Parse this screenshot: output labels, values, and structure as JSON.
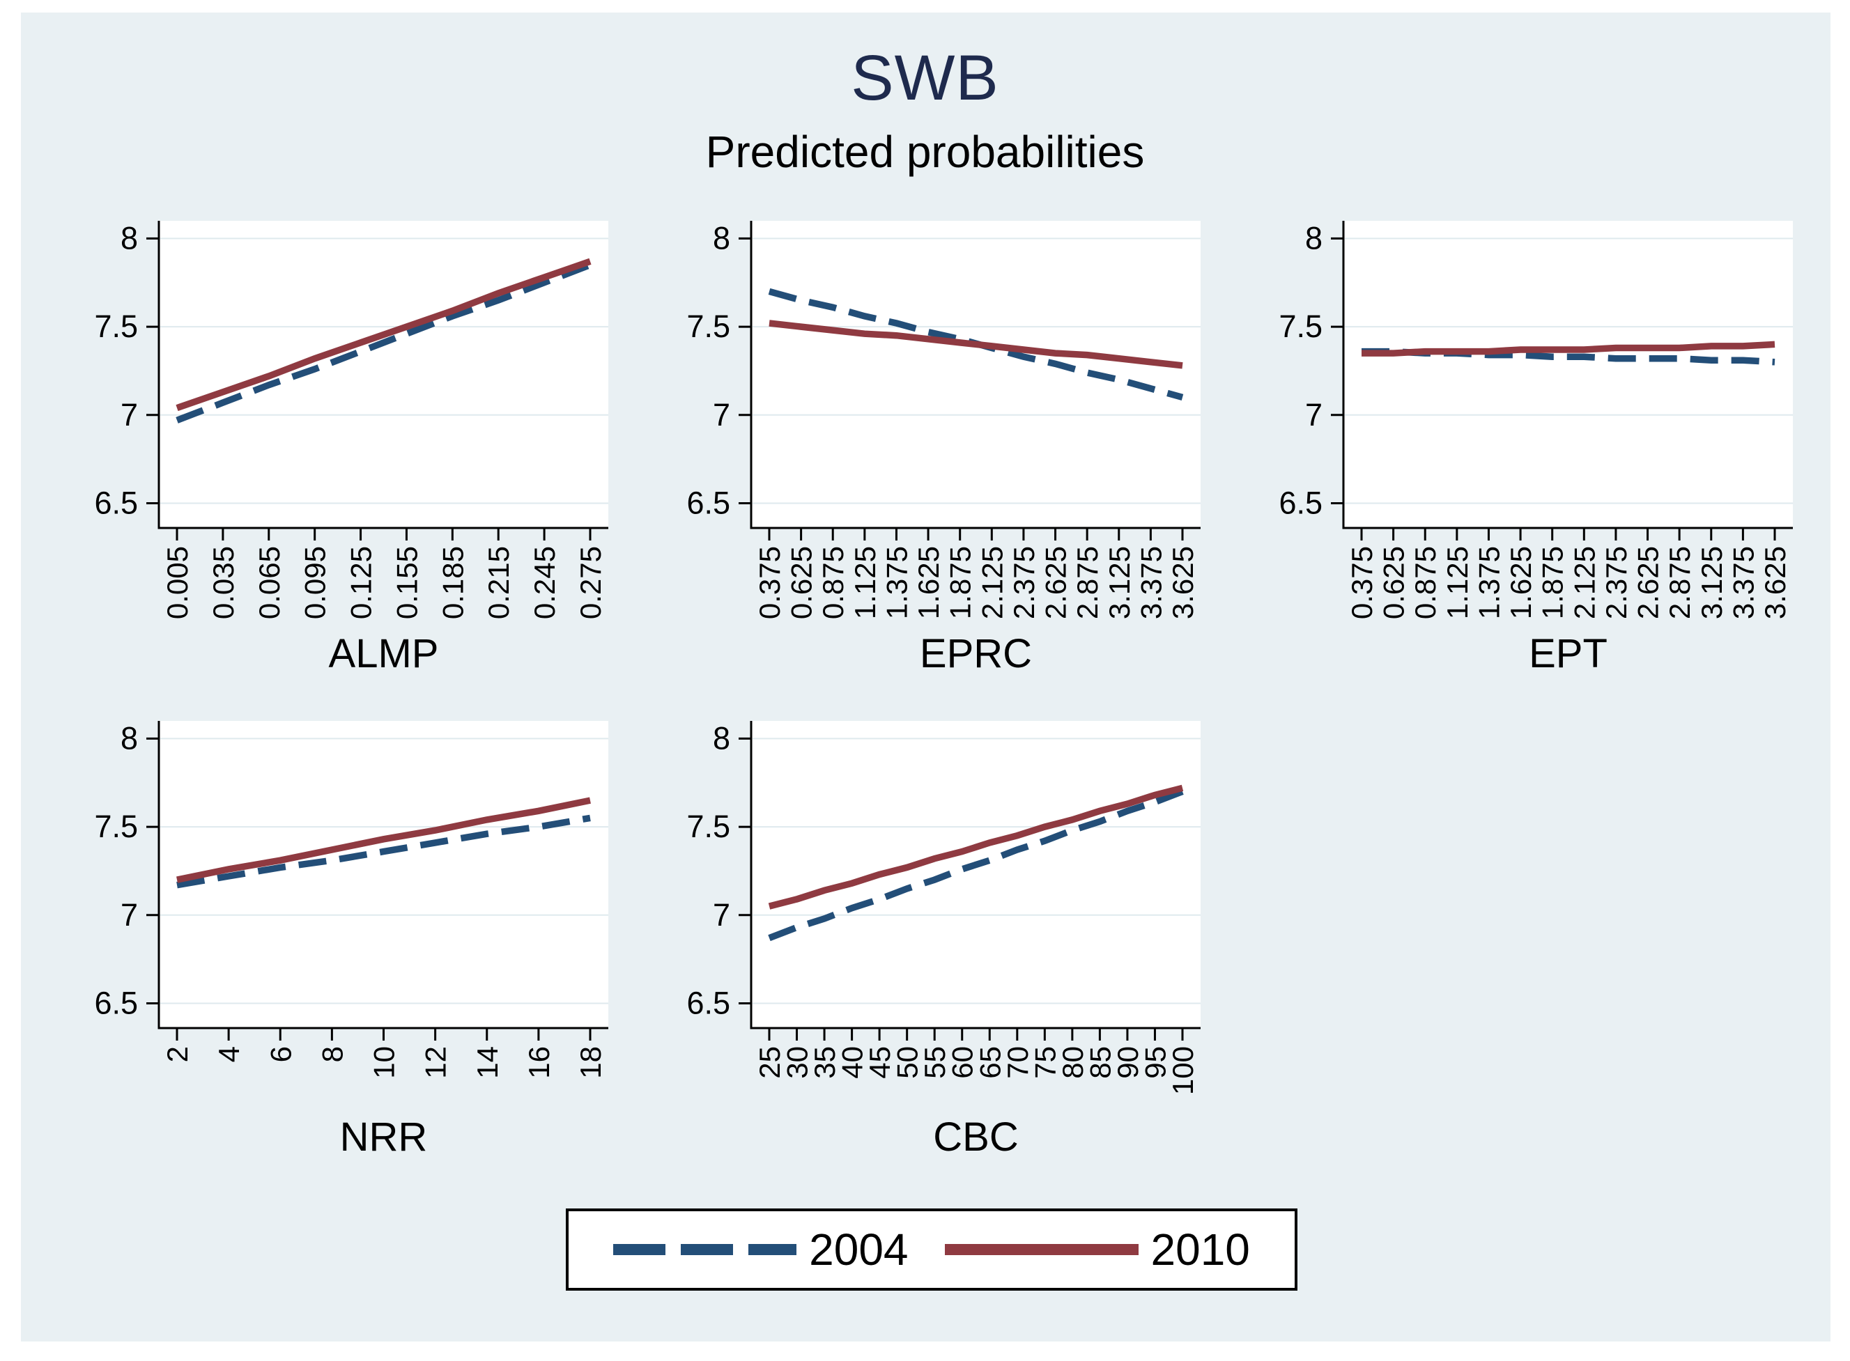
{
  "window": {
    "title": "SWB",
    "subtitle": "Predicted probabilities"
  },
  "colors": {
    "canvas_background": "#ffffff",
    "graph_background": "#e9f0f3",
    "plot_background": "#ffffff",
    "gridline": "#dfeaee",
    "axis": "#000000",
    "tick_label": "#000000",
    "title": "#1e2a4d",
    "subtitle": "#000000",
    "series_2004": "#234e78",
    "series_2010": "#8f3a41",
    "legend_border": "#000000",
    "legend_background": "#ffffff"
  },
  "legend": {
    "position": "bottom-center",
    "entries": [
      {
        "label": "2004",
        "style": "dashed",
        "color": "#234e78"
      },
      {
        "label": "2010",
        "style": "solid",
        "color": "#8f3a41"
      }
    ]
  },
  "chart_data": [
    {
      "type": "line",
      "xlabel": "ALMP",
      "ylabel": "",
      "ylim": [
        6.5,
        8
      ],
      "y_ticks": [
        6.5,
        7,
        7.5,
        8
      ],
      "grid": "horizontal",
      "x_tick_labels": [
        "0.005",
        "0.035",
        "0.065",
        "0.095",
        "0.125",
        "0.155",
        "0.185",
        "0.215",
        "0.245",
        "0.275"
      ],
      "series": [
        {
          "name": "2004",
          "style": "dashed",
          "values": [
            6.97,
            7.07,
            7.17,
            7.26,
            7.36,
            7.46,
            7.56,
            7.65,
            7.75,
            7.85
          ]
        },
        {
          "name": "2010",
          "style": "solid",
          "values": [
            7.04,
            7.13,
            7.22,
            7.32,
            7.41,
            7.5,
            7.59,
            7.69,
            7.78,
            7.87
          ]
        }
      ]
    },
    {
      "type": "line",
      "xlabel": "EPRC",
      "ylabel": "",
      "ylim": [
        6.5,
        8
      ],
      "y_ticks": [
        6.5,
        7,
        7.5,
        8
      ],
      "grid": "horizontal",
      "x_tick_labels": [
        "0.375",
        "0.625",
        "0.875",
        "1.125",
        "1.375",
        "1.625",
        "1.875",
        "2.125",
        "2.375",
        "2.625",
        "2.875",
        "3.125",
        "3.375",
        "3.625"
      ],
      "series": [
        {
          "name": "2004",
          "style": "dashed",
          "values": [
            7.7,
            7.65,
            7.61,
            7.56,
            7.52,
            7.47,
            7.43,
            7.38,
            7.33,
            7.29,
            7.24,
            7.2,
            7.15,
            7.1
          ]
        },
        {
          "name": "2010",
          "style": "solid",
          "values": [
            7.52,
            7.5,
            7.48,
            7.46,
            7.45,
            7.43,
            7.41,
            7.39,
            7.37,
            7.35,
            7.34,
            7.32,
            7.3,
            7.28
          ]
        }
      ]
    },
    {
      "type": "line",
      "xlabel": "EPT",
      "ylabel": "",
      "ylim": [
        6.5,
        8
      ],
      "y_ticks": [
        6.5,
        7,
        7.5,
        8
      ],
      "grid": "horizontal",
      "x_tick_labels": [
        "0.375",
        "0.625",
        "0.875",
        "1.125",
        "1.375",
        "1.625",
        "1.875",
        "2.125",
        "2.375",
        "2.625",
        "2.875",
        "3.125",
        "3.375",
        "3.625"
      ],
      "series": [
        {
          "name": "2004",
          "style": "dashed",
          "values": [
            7.36,
            7.36,
            7.35,
            7.35,
            7.34,
            7.34,
            7.33,
            7.33,
            7.32,
            7.32,
            7.32,
            7.31,
            7.31,
            7.3
          ]
        },
        {
          "name": "2010",
          "style": "solid",
          "values": [
            7.35,
            7.35,
            7.36,
            7.36,
            7.36,
            7.37,
            7.37,
            7.37,
            7.38,
            7.38,
            7.38,
            7.39,
            7.39,
            7.4
          ]
        }
      ]
    },
    {
      "type": "line",
      "xlabel": "NRR",
      "ylabel": "",
      "ylim": [
        6.5,
        8
      ],
      "y_ticks": [
        6.5,
        7,
        7.5,
        8
      ],
      "grid": "horizontal",
      "x_tick_labels": [
        "2",
        "4",
        "6",
        "8",
        "10",
        "12",
        "14",
        "16",
        "18"
      ],
      "series": [
        {
          "name": "2004",
          "style": "dashed",
          "values": [
            7.17,
            7.22,
            7.27,
            7.31,
            7.36,
            7.41,
            7.46,
            7.5,
            7.55
          ]
        },
        {
          "name": "2010",
          "style": "solid",
          "values": [
            7.2,
            7.26,
            7.31,
            7.37,
            7.43,
            7.48,
            7.54,
            7.59,
            7.65
          ]
        }
      ]
    },
    {
      "type": "line",
      "xlabel": "CBC",
      "ylabel": "",
      "ylim": [
        6.5,
        8
      ],
      "y_ticks": [
        6.5,
        7,
        7.5,
        8
      ],
      "grid": "horizontal",
      "x_tick_labels": [
        "25",
        "30",
        "35",
        "40",
        "45",
        "50",
        "55",
        "60",
        "65",
        "70",
        "75",
        "80",
        "85",
        "90",
        "95",
        "100"
      ],
      "series": [
        {
          "name": "2004",
          "style": "dashed",
          "values": [
            6.87,
            6.93,
            6.98,
            7.04,
            7.09,
            7.15,
            7.2,
            7.26,
            7.31,
            7.37,
            7.42,
            7.48,
            7.53,
            7.59,
            7.64,
            7.7
          ]
        },
        {
          "name": "2010",
          "style": "solid",
          "values": [
            7.05,
            7.09,
            7.14,
            7.18,
            7.23,
            7.27,
            7.32,
            7.36,
            7.41,
            7.45,
            7.5,
            7.54,
            7.59,
            7.63,
            7.68,
            7.72
          ]
        }
      ]
    }
  ]
}
